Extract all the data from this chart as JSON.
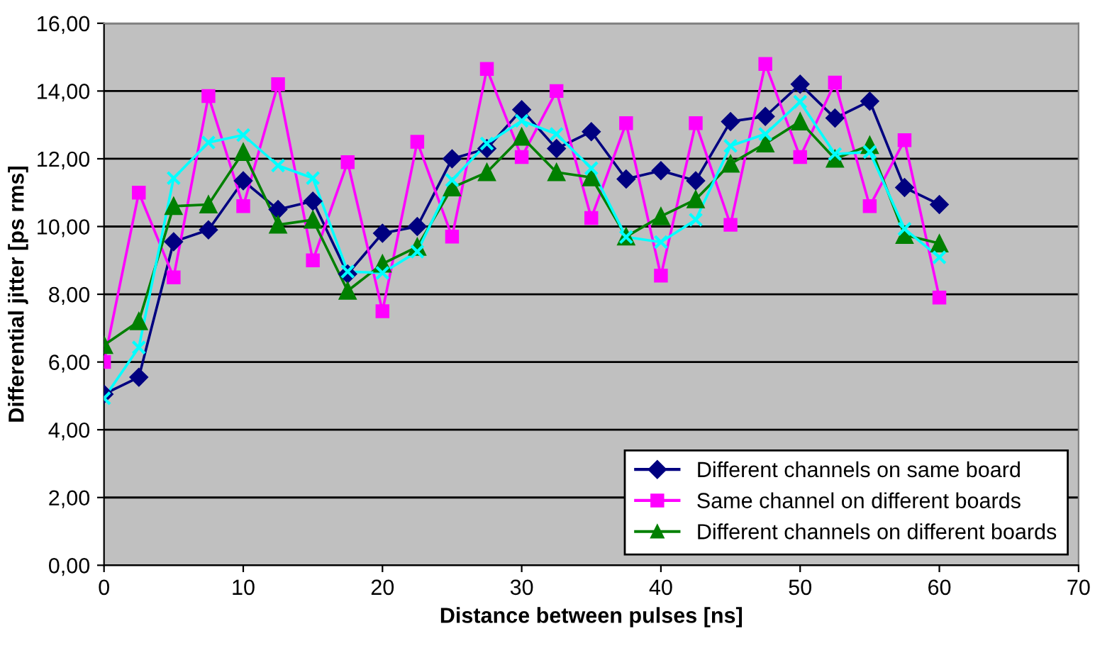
{
  "chart_data": {
    "type": "line",
    "xlabel": "Distance between pulses [ns]",
    "ylabel": "Differential jitter [ps rms]",
    "x": [
      0,
      2.5,
      5,
      7.5,
      10,
      12.5,
      15,
      17.5,
      20,
      22.5,
      25,
      27.5,
      30,
      32.5,
      35,
      37.5,
      40,
      42.5,
      45,
      47.5,
      50,
      52.5,
      55,
      57.5,
      60
    ],
    "series": [
      {
        "name": "Different channels on same board",
        "color": "#000080",
        "marker": "diamond",
        "values": [
          5.05,
          5.55,
          9.55,
          9.9,
          11.35,
          10.5,
          10.75,
          8.6,
          9.8,
          10.0,
          12.0,
          12.3,
          13.45,
          12.3,
          12.8,
          11.4,
          11.65,
          11.35,
          13.1,
          13.25,
          14.2,
          13.2,
          13.7,
          11.15,
          10.65
        ]
      },
      {
        "name": "Same channel on different boards",
        "color": "#ff00ff",
        "marker": "square",
        "values": [
          6.0,
          11.0,
          8.5,
          13.85,
          10.6,
          14.2,
          9.0,
          11.9,
          7.5,
          12.5,
          9.7,
          14.65,
          12.05,
          14.0,
          10.25,
          13.05,
          8.55,
          13.05,
          10.05,
          14.8,
          12.05,
          14.25,
          10.6,
          12.55,
          7.9
        ]
      },
      {
        "name": "Different channels on different boards",
        "color": "#008000",
        "marker": "triangle",
        "values": [
          6.5,
          7.2,
          10.6,
          10.65,
          12.2,
          10.05,
          10.2,
          8.1,
          8.9,
          9.4,
          11.15,
          11.6,
          12.65,
          11.6,
          11.45,
          9.7,
          10.3,
          10.8,
          11.85,
          12.45,
          13.1,
          12.0,
          12.4,
          9.75,
          9.5
        ]
      },
      {
        "color": "#00ffff",
        "marker": "cross",
        "values": [
          4.93,
          6.43,
          11.43,
          12.48,
          12.7,
          11.8,
          11.43,
          8.67,
          8.63,
          9.26,
          11.37,
          12.45,
          13.12,
          12.73,
          11.72,
          9.69,
          9.54,
          10.2,
          12.38,
          12.73,
          13.68,
          12.14,
          12.2,
          9.93,
          9.09
        ]
      }
    ],
    "xlim": [
      0,
      70
    ],
    "xticks": [
      0,
      10,
      20,
      30,
      40,
      50,
      60,
      70
    ],
    "ylim": [
      0,
      16
    ],
    "yticks": [
      {
        "value": 0,
        "label": "0,00"
      },
      {
        "value": 2,
        "label": "2,00"
      },
      {
        "value": 4,
        "label": "4,00"
      },
      {
        "value": 6,
        "label": "6,00"
      },
      {
        "value": 8,
        "label": "8,00"
      },
      {
        "value": 10,
        "label": "10,00"
      },
      {
        "value": 12,
        "label": "12,00"
      },
      {
        "value": 14,
        "label": "14,00"
      },
      {
        "value": 16,
        "label": "16,00"
      }
    ],
    "grid": "y",
    "legend": "bottom right",
    "line_style": "solid"
  }
}
